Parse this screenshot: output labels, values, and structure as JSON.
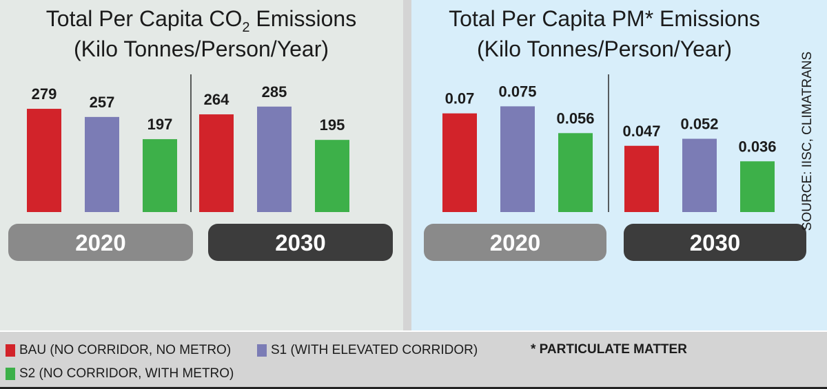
{
  "chart_data": [
    {
      "type": "bar",
      "title_line1": "Total Per Capita CO",
      "title_subscript": "2",
      "title_line1_end": " Emissions",
      "title_line2": "(Kilo Tonnes/Person/Year)",
      "groups": [
        "2020",
        "2030"
      ],
      "series": [
        {
          "name": "BAU",
          "values": [
            279,
            264
          ],
          "labels": [
            "279",
            "264"
          ]
        },
        {
          "name": "S1",
          "values": [
            257,
            285
          ],
          "labels": [
            "257",
            "285"
          ]
        },
        {
          "name": "S2",
          "values": [
            197,
            195
          ],
          "labels": [
            "197",
            "195"
          ]
        }
      ],
      "ylim": [
        0,
        400
      ]
    },
    {
      "type": "bar",
      "title_line1": "Total Per Capita PM* Emissions",
      "title_line2": "(Kilo Tonnes/Person/Year)",
      "groups": [
        "2020",
        "2030"
      ],
      "series": [
        {
          "name": "BAU",
          "values": [
            0.07,
            0.047
          ],
          "labels": [
            "0.07",
            "0.047"
          ]
        },
        {
          "name": "S1",
          "values": [
            0.075,
            0.052
          ],
          "labels": [
            "0.075",
            "0.052"
          ]
        },
        {
          "name": "S2",
          "values": [
            0.056,
            0.036
          ],
          "labels": [
            "0.056",
            "0.036"
          ]
        }
      ],
      "ylim": [
        0,
        0.105
      ]
    }
  ],
  "colors": {
    "BAU": "#d2232a",
    "S1": "#7b7cb5",
    "S2": "#3db049",
    "year_2020": "#8a8a8a",
    "year_2030": "#3c3c3c"
  },
  "legend": {
    "bau": "BAU (NO CORRIDOR, NO METRO)",
    "s1": "S1 (WITH ELEVATED CORRIDOR)",
    "s2": "S2 (NO CORRIDOR, WITH METRO)",
    "footnote": "* PARTICULATE MATTER"
  },
  "source": "SOURCE: IISC, CLIMATRANS"
}
